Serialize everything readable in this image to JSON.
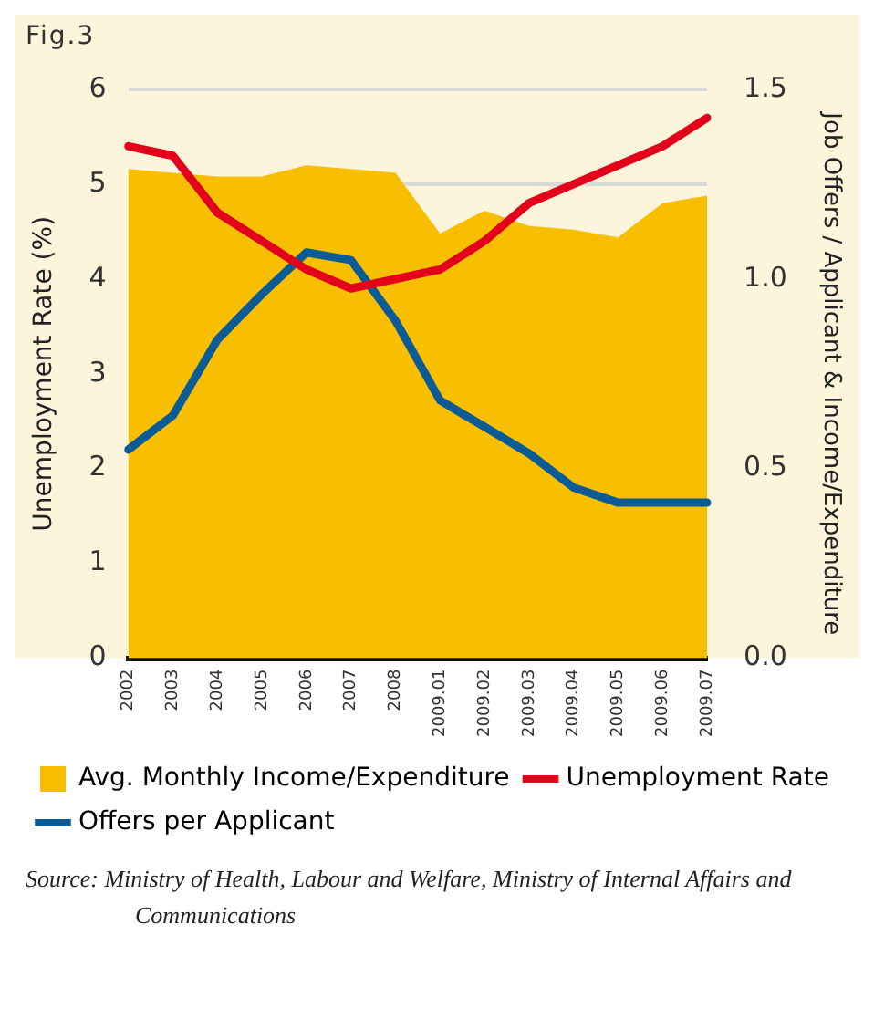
{
  "chart_data": {
    "type": "line",
    "title": "Fig.3",
    "ylabel": "Unemployment Rate (%)",
    "y2label": "Job Offers / Applicant & Income/Expenditure",
    "categories": [
      "2002",
      "2003",
      "2004",
      "2005",
      "2006",
      "2007",
      "2008",
      "2009.01",
      "2009.02",
      "2009.03",
      "2009.04",
      "2009.05",
      "2009.06",
      "2009.07"
    ],
    "series": [
      {
        "name": "Avg. Monthly Income/Expenditure",
        "type": "area",
        "color": "#f8bf00",
        "axis": "y2",
        "values": [
          1.29,
          1.28,
          1.27,
          1.27,
          1.3,
          1.29,
          1.28,
          1.12,
          1.18,
          1.14,
          1.13,
          1.11,
          1.2,
          1.22
        ]
      },
      {
        "name": "Unemployment Rate",
        "color": "#e3001b",
        "values": [
          5.4,
          5.3,
          4.7,
          4.4,
          4.1,
          3.9,
          4.0,
          4.1,
          4.4,
          4.8,
          5.0,
          5.2,
          5.4,
          5.7
        ]
      },
      {
        "name": "Offers per Applicant",
        "color": "#0a5b96",
        "axis": "y2",
        "values": [
          0.55,
          0.64,
          0.84,
          0.96,
          1.07,
          1.05,
          0.89,
          0.68,
          0.61,
          0.54,
          0.45,
          0.41,
          0.41,
          0.41
        ]
      }
    ],
    "ylim": [
      0,
      6
    ],
    "yticks": [
      0,
      1,
      2,
      3,
      4,
      5,
      6
    ],
    "y2lim": [
      0,
      1.5
    ],
    "y2ticks": [
      {
        "value": 0,
        "label": "0.0"
      },
      {
        "value": 0.5,
        "label": "0.5"
      },
      {
        "value": 1,
        "label": "1.0"
      },
      {
        "value": 1.5,
        "label": "1.5"
      }
    ],
    "grid": "y",
    "legend": "bottom",
    "marker": "none",
    "annotations": [
      "Source: Ministry of Health, Labour and Welfare, Ministry of Internal Affairs and Communications"
    ]
  }
}
